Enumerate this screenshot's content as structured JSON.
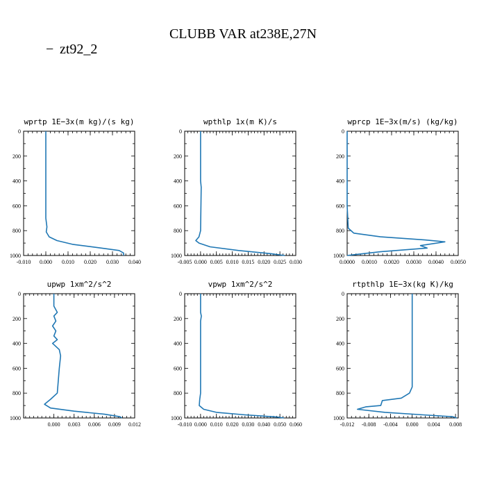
{
  "figure": {
    "title": "CLUBB VAR at238E,27N",
    "legend": {
      "label": "zt92_2",
      "marker": "−"
    },
    "colors": {
      "series": "#1f77b4",
      "text": "#000000"
    }
  },
  "chart_data": [
    {
      "type": "line",
      "title": "wprtp  1E−3x(m kg)/(s kg)",
      "xlim": [
        -0.01,
        0.04
      ],
      "xticks": [
        "-0.010",
        "0.000",
        "0.010",
        "0.020",
        "0.030",
        "0.040"
      ],
      "ylim": [
        1000,
        0
      ],
      "yticks": [
        "0",
        "200",
        "400",
        "600",
        "800",
        "1000"
      ],
      "series": [
        {
          "x": [
            0.0,
            0.0,
            0.0005,
            0.0002,
            0.0015,
            0.005,
            0.012,
            0.025,
            0.033,
            0.035,
            0.035
          ],
          "y": [
            0,
            700,
            770,
            810,
            850,
            880,
            910,
            940,
            960,
            980,
            1000
          ]
        }
      ]
    },
    {
      "type": "line",
      "title": "wpthlp  1x(m K)/s",
      "xlim": [
        -0.005,
        0.03
      ],
      "xticks": [
        "-0.005",
        "0.000",
        "0.005",
        "0.010",
        "0.015",
        "0.020",
        "0.025",
        "0.030"
      ],
      "ylim": [
        1000,
        0
      ],
      "yticks": [
        "0",
        "200",
        "400",
        "600",
        "800",
        "1000"
      ],
      "series": [
        {
          "x": [
            0.0,
            0.0,
            0.0002,
            0.0,
            -0.0005,
            -0.0015,
            -0.0005,
            0.003,
            0.012,
            0.022,
            0.0265
          ],
          "y": [
            0,
            400,
            450,
            800,
            850,
            880,
            900,
            930,
            960,
            985,
            1000
          ]
        }
      ]
    },
    {
      "type": "line",
      "title": "wprcp  1E−3x(m/s) (kg/kg)",
      "xlim": [
        0.0,
        0.005
      ],
      "xticks": [
        "0.0000",
        "0.0010",
        "0.0020",
        "0.0030",
        "0.0040",
        "0.0050"
      ],
      "ylim": [
        1000,
        0
      ],
      "yticks": [
        "0",
        "200",
        "400",
        "600",
        "800",
        "1000"
      ],
      "series": [
        {
          "x": [
            0.0,
            0.0,
            5e-05,
            0.0003,
            0.0015,
            0.0035,
            0.0044,
            0.0033,
            0.0036,
            0.0015,
            0.0
          ],
          "y": [
            0,
            600,
            780,
            820,
            850,
            875,
            890,
            920,
            940,
            970,
            1000
          ]
        }
      ]
    },
    {
      "type": "line",
      "title": "upwp  1xm^2/s^2",
      "xlim": [
        -0.0045,
        0.012
      ],
      "xticks": [
        "0.000",
        "0.003",
        "0.006",
        "0.009",
        "0.012"
      ],
      "ylim": [
        1000,
        0
      ],
      "yticks": [
        "0",
        "200",
        "400",
        "600",
        "800",
        "1000"
      ],
      "series": [
        {
          "x": [
            0.0,
            0.0,
            0.0005,
            0.0,
            0.0003,
            -0.0002,
            0.0003,
            0.0,
            0.0005,
            -0.0002,
            0.0008,
            0.001,
            0.0008,
            0.0005,
            -0.0005,
            -0.0014,
            -0.0005,
            0.003,
            0.0075,
            0.0098,
            0.0101
          ],
          "y": [
            0,
            100,
            150,
            180,
            220,
            260,
            300,
            340,
            370,
            400,
            450,
            500,
            600,
            800,
            850,
            890,
            920,
            945,
            970,
            990,
            1000
          ]
        }
      ]
    },
    {
      "type": "line",
      "title": "vpwp  1xm^2/s^2",
      "xlim": [
        -0.01,
        0.06
      ],
      "xticks": [
        "-0.010",
        "0.000",
        "0.010",
        "0.020",
        "0.030",
        "0.040",
        "0.050",
        "0.060"
      ],
      "ylim": [
        1000,
        0
      ],
      "yticks": [
        "0",
        "200",
        "400",
        "600",
        "800",
        "1000"
      ],
      "series": [
        {
          "x": [
            0.0,
            0.0,
            0.0005,
            0.0,
            0.0,
            -0.0005,
            -0.0008,
            0.002,
            0.01,
            0.028,
            0.048,
            0.0525
          ],
          "y": [
            0,
            150,
            180,
            220,
            800,
            850,
            900,
            930,
            955,
            975,
            992,
            1000
          ]
        }
      ]
    },
    {
      "type": "line",
      "title": "rtpthlp  1E−3x(kg K)/kg",
      "xlim": [
        -0.012,
        0.0085
      ],
      "xticks": [
        "-0.012",
        "-0.008",
        "-0.004",
        "0.000",
        "0.004",
        "0.008"
      ],
      "ylim": [
        1000,
        0
      ],
      "yticks": [
        "0",
        "200",
        "400",
        "600",
        "800",
        "1000"
      ],
      "series": [
        {
          "x": [
            0.0,
            0.0,
            -0.0005,
            -0.002,
            -0.0055,
            -0.0058,
            -0.0085,
            -0.0101,
            -0.005,
            0.002,
            0.0075,
            0.0082
          ],
          "y": [
            0,
            750,
            800,
            840,
            860,
            900,
            910,
            930,
            955,
            975,
            990,
            1000
          ]
        }
      ]
    }
  ]
}
